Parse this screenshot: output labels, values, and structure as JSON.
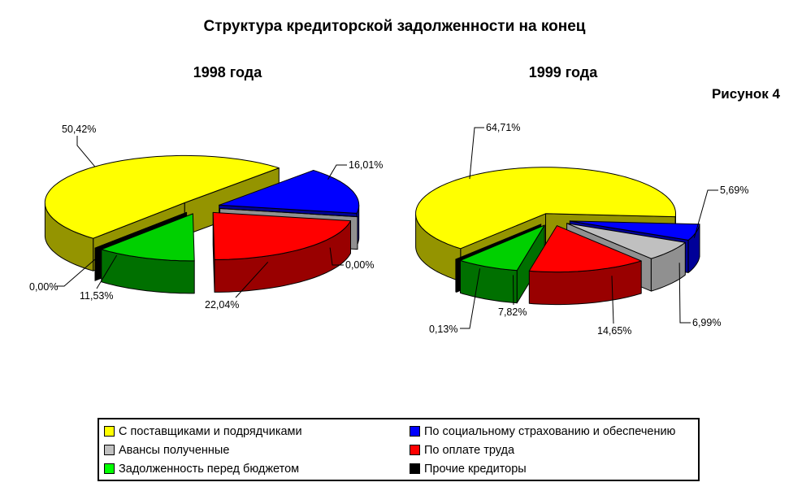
{
  "title": "Структура кредиторской задолженности на конец",
  "figure_caption": "Рисунок 4",
  "colors": {
    "background": "#FFFFFF",
    "slice_top": [
      "#FFFF00",
      "#0000FF",
      "#C0C0C0",
      "#FF0000",
      "#00D000",
      "#000000"
    ],
    "slice_side": [
      "#949400",
      "#000099",
      "#909090",
      "#990000",
      "#007000",
      "#000000"
    ],
    "legend_green": "#00FF00"
  },
  "chart_data": [
    {
      "type": "pie",
      "style": "3d-exploded",
      "title": "1998 года",
      "unit": "%",
      "categories": [
        "С поставщиками и подрядчиками",
        "По социальному страхованию и обеспечению",
        "Авансы полученные",
        "По оплате труда",
        "Задолженность перед бюджетом",
        "Прочие кредиторы"
      ],
      "values": [
        50.42,
        16.01,
        0.0,
        22.04,
        11.53,
        0.0
      ],
      "labels": [
        "50,42%",
        "16,01%",
        "0,00%",
        "22,04%",
        "11,53%",
        "0,00%"
      ]
    },
    {
      "type": "pie",
      "style": "3d-exploded",
      "title": "1999 года",
      "unit": "%",
      "categories": [
        "С поставщиками и подрядчиками",
        "По социальному страхованию и обеспечению",
        "Авансы полученные",
        "По оплате труда",
        "Задолженность перед бюджетом",
        "Прочие кредиторы"
      ],
      "values": [
        64.71,
        5.69,
        6.99,
        14.65,
        7.82,
        0.13
      ],
      "labels": [
        "64,71%",
        "5,69%",
        "6,99%",
        "14,65%",
        "7,82%",
        "0,13%"
      ]
    }
  ],
  "legend": {
    "items": [
      {
        "label": "С поставщиками и подрядчиками",
        "color": "#FFFF00"
      },
      {
        "label": "По социальному страхованию и обеспечению",
        "color": "#0000FF"
      },
      {
        "label": "Авансы полученные",
        "color": "#C0C0C0"
      },
      {
        "label": "По оплате труда",
        "color": "#FF0000"
      },
      {
        "label": "Задолженность перед бюджетом",
        "color": "#00FF00"
      },
      {
        "label": "Прочие кредиторы",
        "color": "#000000"
      }
    ]
  }
}
